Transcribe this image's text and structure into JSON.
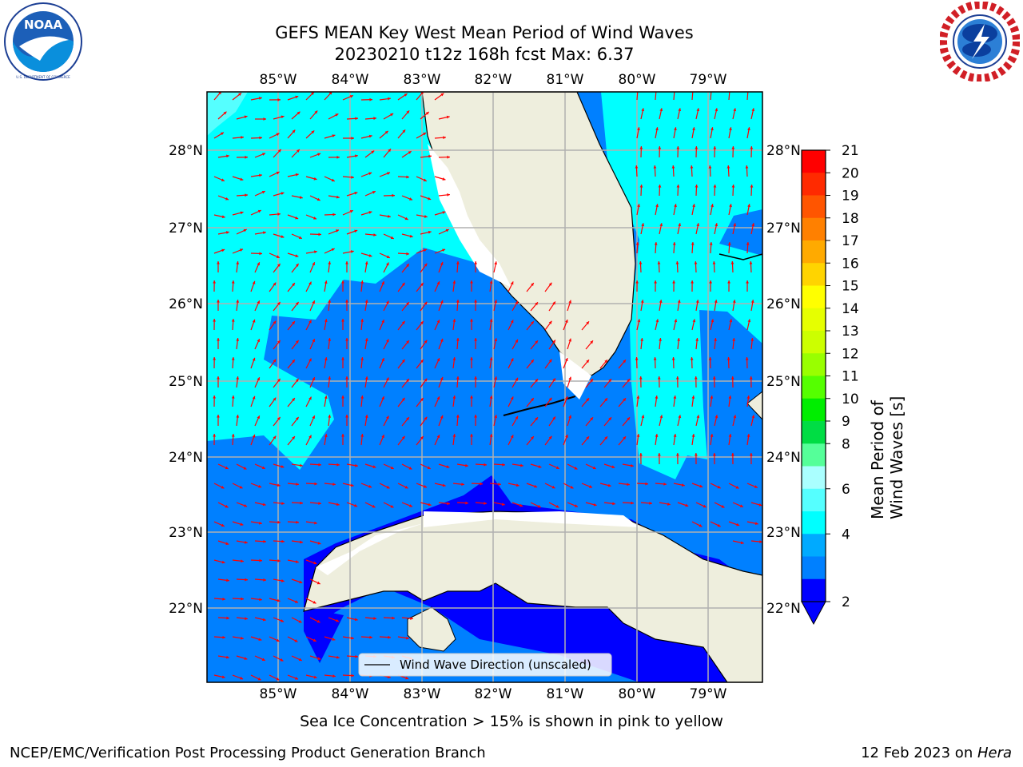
{
  "title": {
    "line1": "GEFS MEAN Key West Mean Period of Wind Waves",
    "line2": "20230210 t12z 168h fcst   Max: 6.37"
  },
  "logos": {
    "left": {
      "icon": "noaa-logo-icon",
      "text": "NOAA",
      "ring_text": "NATIONAL OCEANIC AND ATMOSPHERIC ADMINISTRATION · U.S. DEPARTMENT OF COMMERCE"
    },
    "right": {
      "icon": "nws-logo-icon",
      "ring_text": "NATIONAL WEATHER SERVICE"
    }
  },
  "map": {
    "lon_labels": [
      "85°W",
      "84°W",
      "83°W",
      "82°W",
      "81°W",
      "80°W",
      "79°W"
    ],
    "lat_labels": [
      "28°N",
      "27°N",
      "26°N",
      "25°N",
      "24°N",
      "23°N",
      "22°N"
    ],
    "legend_text": "Wind Wave Direction (unscaled)",
    "colors": {
      "land": "#eeeedd",
      "gridline": "#b0b0b0",
      "arrow": "#ff0000",
      "coast": "#000000"
    }
  },
  "colorbar": {
    "label": "Mean Period of Wind Waves [s]",
    "ticks": [
      "21",
      "20",
      "19",
      "18",
      "17",
      "16",
      "15",
      "14",
      "13",
      "12",
      "11",
      "10",
      "9",
      "8",
      "6",
      "4",
      "2"
    ],
    "colors_top_to_bottom": [
      "#ff0000",
      "#ff2a00",
      "#ff5500",
      "#ff8000",
      "#ffaa00",
      "#ffd400",
      "#ffff00",
      "#e6ff00",
      "#ccff00",
      "#99ff00",
      "#55ff00",
      "#00ee00",
      "#00dd44",
      "#55ff99",
      "#aaffff",
      "#55ffff",
      "#00ffff",
      "#00aaff",
      "#0080ff",
      "#0000ff"
    ]
  },
  "footnote": "Sea Ice Concentration > 15% is shown in pink to yellow",
  "credits": {
    "left": "NCEP/EMC/Verification Post Processing Product Generation Branch",
    "right_date": "12 Feb 2023 on ",
    "right_host": "Hera"
  }
}
